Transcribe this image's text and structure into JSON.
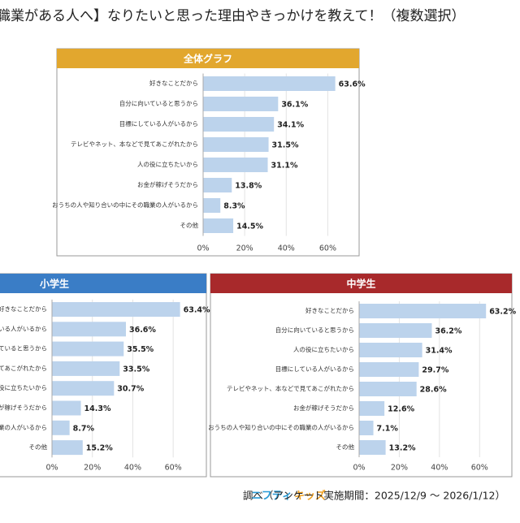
{
  "title": "職業がある人へ】なりたいと思った理由やきっかけを教えて！（複数選択）",
  "chart_data": [
    {
      "type": "bar",
      "horizontal": true,
      "title": "全体グラフ",
      "header_color": "#e2a72e",
      "color": "#bcd3ec",
      "grid": true,
      "categories": [
        "好きなことだから",
        "自分に向いていると思うから",
        "目標にしている人がいるから",
        "テレビやネット、本などで見てあこがれたから",
        "人の役に立ちたいから",
        "お金が稼げそうだから",
        "おうちの人や知り合いの中にその職業の人がいるから",
        "その他"
      ],
      "values": [
        63.6,
        36.1,
        34.1,
        31.5,
        31.1,
        13.8,
        8.3,
        14.5
      ],
      "value_labels": [
        "63.6%",
        "36.1%",
        "34.1%",
        "31.5%",
        "31.1%",
        "13.8%",
        "8.3%",
        "14.5%"
      ],
      "xlim": [
        0,
        70
      ],
      "xticks": [
        {
          "value": 0,
          "label": "0%"
        },
        {
          "value": 20,
          "label": "20%"
        },
        {
          "value": 40,
          "label": "40%"
        },
        {
          "value": 60,
          "label": "60%"
        }
      ]
    },
    {
      "type": "bar",
      "horizontal": true,
      "title": "小学生",
      "header_color": "#3a7dc6",
      "color": "#bcd3ec",
      "grid": true,
      "categories": [
        "好きなことだから",
        "いる人がいるから",
        "いていると思うから",
        "見てあこがれたから",
        "役に立ちたいから",
        "が稼げそうだから",
        "職業の人がいるから",
        "その他"
      ],
      "values": [
        63.4,
        36.6,
        35.5,
        33.5,
        30.7,
        14.3,
        8.7,
        15.2
      ],
      "value_labels": [
        "63.4%",
        "36.6%",
        "35.5%",
        "33.5%",
        "30.7%",
        "14.3%",
        "8.7%",
        "15.2%"
      ],
      "xlim": [
        0,
        70
      ],
      "xticks": [
        {
          "value": 0,
          "label": "0%"
        },
        {
          "value": 20,
          "label": "20%"
        },
        {
          "value": 40,
          "label": "40%"
        },
        {
          "value": 60,
          "label": "60%"
        }
      ]
    },
    {
      "type": "bar",
      "horizontal": true,
      "title": "中学生",
      "header_color": "#a8292b",
      "color": "#bcd3ec",
      "grid": true,
      "categories": [
        "好きなことだから",
        "自分に向いていると思うから",
        "人の役に立ちたいから",
        "目標にしている人がいるから",
        "テレビやネット、本などで見てあこがれたから",
        "お金が稼げそうだから",
        "おうちの人や知り合いの中にその職業の人がいるから",
        "その他"
      ],
      "values": [
        63.2,
        36.2,
        31.4,
        29.7,
        28.6,
        12.6,
        7.1,
        13.2
      ],
      "value_labels": [
        "63.2%",
        "36.2%",
        "31.4%",
        "29.7%",
        "28.6%",
        "12.6%",
        "7.1%",
        "13.2%"
      ],
      "xlim": [
        0,
        70
      ],
      "xticks": [
        {
          "value": 0,
          "label": "0%"
        },
        {
          "value": 20,
          "label": "20%"
        },
        {
          "value": 40,
          "label": "40%"
        },
        {
          "value": 60,
          "label": "60%"
        }
      ]
    }
  ],
  "footer": {
    "logo_a": "ニフティ",
    "logo_b": "キッズ",
    "text": "調べ（アンケート実施期間：2025/12/9 ～ 2026/1/12）"
  }
}
